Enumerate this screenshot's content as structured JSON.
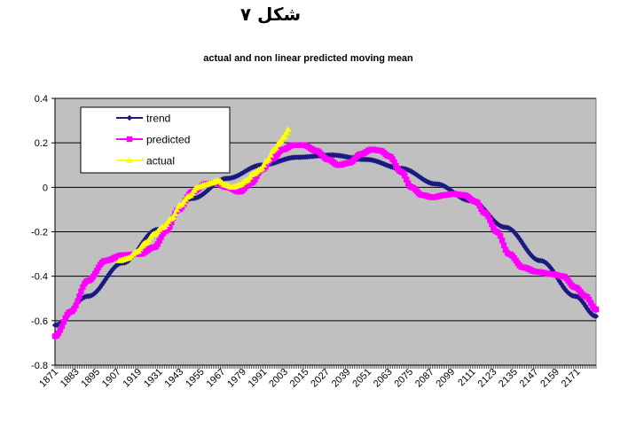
{
  "figure_title": "شکل ۷",
  "chart_data": {
    "type": "line",
    "title": "actual and non linear predicted moving mean",
    "xlabel": "",
    "ylabel": "",
    "ylim": [
      -0.8,
      0.4
    ],
    "yticks": [
      0.4,
      0.2,
      0,
      -0.2,
      -0.4,
      -0.6,
      -0.8
    ],
    "ytick_labels": [
      "0.4",
      "0.2",
      "0",
      "-0.2",
      "-0.4",
      "-0.6",
      "-0.8"
    ],
    "xlim": [
      1871,
      2182
    ],
    "xtick_labels": [
      "1871",
      "1883",
      "1895",
      "1907",
      "1919",
      "1931",
      "1943",
      "1955",
      "1967",
      "1979",
      "1991",
      "2003",
      "2015",
      "2027",
      "2039",
      "2051",
      "2063",
      "2075",
      "2087",
      "2099",
      "2111",
      "2123",
      "2135",
      "2147",
      "2159",
      "2171"
    ],
    "grid": "horizontal",
    "plot_background": "#c0c0c0",
    "legend_position": "top-left",
    "series": [
      {
        "name": "trend",
        "color": "#1a1a80",
        "marker": "diamond",
        "x": [
          1871,
          1890,
          1910,
          1930,
          1950,
          1970,
          1990,
          2010,
          2030,
          2050,
          2070,
          2090,
          2110,
          2130,
          2150,
          2170,
          2182
        ],
        "y": [
          -0.62,
          -0.49,
          -0.34,
          -0.19,
          -0.05,
          0.04,
          0.1,
          0.135,
          0.145,
          0.125,
          0.085,
          0.015,
          -0.06,
          -0.18,
          -0.33,
          -0.49,
          -0.58
        ]
      },
      {
        "name": "predicted",
        "color": "#ff00ff",
        "marker": "square",
        "x": [
          1871,
          1880,
          1890,
          1900,
          1910,
          1920,
          1928,
          1935,
          1942,
          1950,
          1958,
          1963,
          1970,
          1977,
          1984,
          1990,
          1996,
          2002,
          2008,
          2014,
          2021,
          2028,
          2034,
          2040,
          2047,
          2053,
          2058,
          2063,
          2070,
          2076,
          2082,
          2088,
          2095,
          2100,
          2106,
          2113,
          2118,
          2125,
          2132,
          2140,
          2148,
          2156,
          2163,
          2170,
          2176,
          2182
        ],
        "y": [
          -0.67,
          -0.56,
          -0.42,
          -0.33,
          -0.305,
          -0.3,
          -0.27,
          -0.195,
          -0.1,
          -0.02,
          0.015,
          0.02,
          0.0,
          -0.02,
          0.02,
          0.08,
          0.13,
          0.17,
          0.19,
          0.19,
          0.165,
          0.125,
          0.1,
          0.11,
          0.15,
          0.17,
          0.165,
          0.14,
          0.07,
          0.0,
          -0.035,
          -0.045,
          -0.035,
          -0.03,
          -0.035,
          -0.065,
          -0.115,
          -0.2,
          -0.3,
          -0.36,
          -0.38,
          -0.39,
          -0.4,
          -0.45,
          -0.49,
          -0.55
        ]
      },
      {
        "name": "actual",
        "color": "#ffff00",
        "marker": "triangle",
        "x": [
          1908,
          1913,
          1918,
          1923,
          1928,
          1933,
          1938,
          1943,
          1948,
          1953,
          1957,
          1961,
          1965,
          1969,
          1973,
          1977,
          1981,
          1985,
          1989,
          1993,
          1997,
          2000,
          2003,
          2005
        ],
        "y": [
          -0.33,
          -0.32,
          -0.29,
          -0.25,
          -0.21,
          -0.18,
          -0.14,
          -0.08,
          -0.04,
          0.0,
          0.01,
          0.02,
          0.03,
          0.01,
          0.0,
          0.01,
          0.03,
          0.06,
          0.08,
          0.12,
          0.17,
          0.2,
          0.23,
          0.26
        ]
      }
    ]
  }
}
